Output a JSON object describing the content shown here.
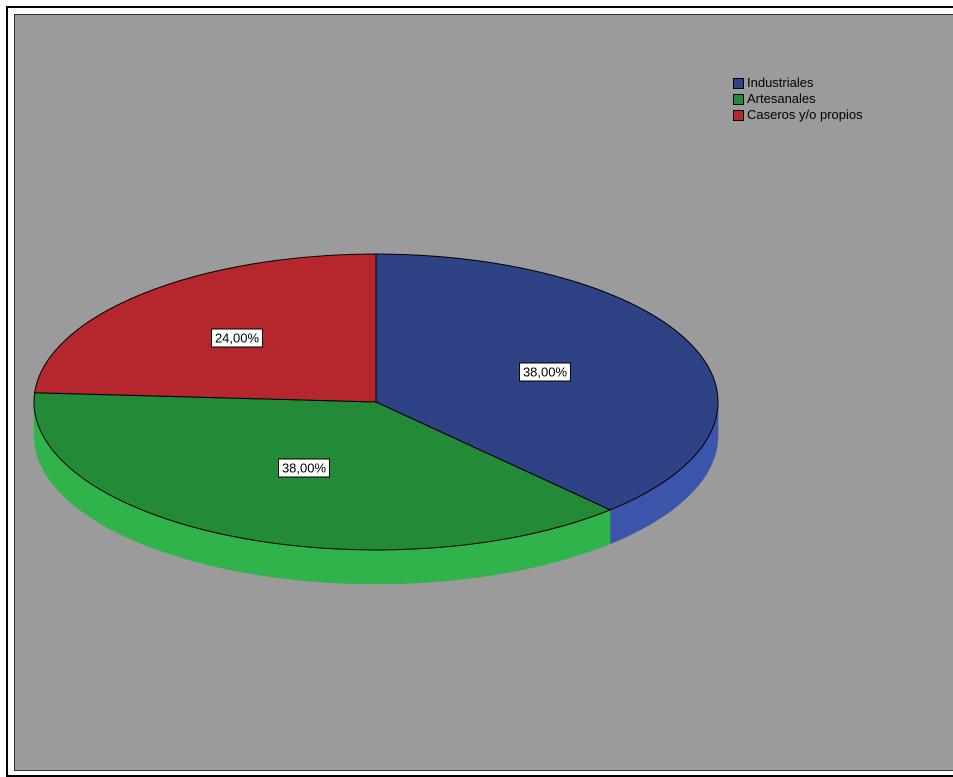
{
  "chart_data": {
    "type": "pie",
    "categories": [
      "Industriales",
      "Artesanales",
      "Caseros y/o propios"
    ],
    "values": [
      38.0,
      38.0,
      24.0
    ],
    "labels": [
      "38,00%",
      "38,00%",
      "24,00%"
    ],
    "colors": [
      "#2e4285",
      "#238a38",
      "#b5272d"
    ],
    "side_colors": [
      "#3a55aa",
      "#2fb34a",
      "#d8343b"
    ],
    "legend_position": "top-right",
    "three_d": true
  },
  "legend": {
    "items": [
      {
        "label": "Industriales",
        "color": "#2e4285"
      },
      {
        "label": "Artesanales",
        "color": "#238a38"
      },
      {
        "label": "Caseros y/o propios",
        "color": "#b5272d"
      }
    ]
  }
}
